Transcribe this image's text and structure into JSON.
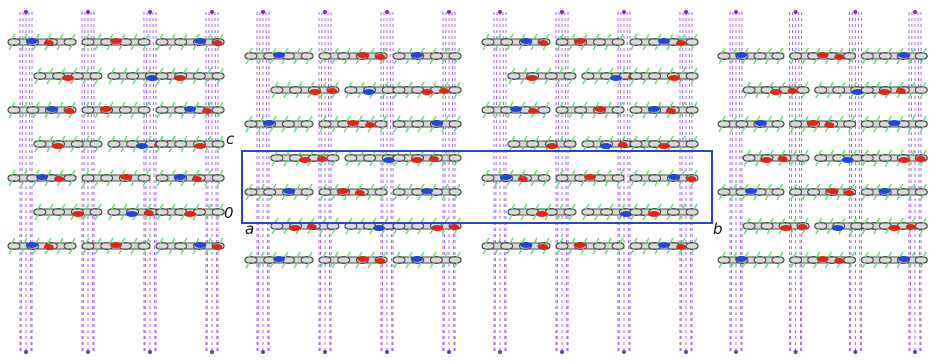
{
  "diagram": {
    "type": "crystal-packing",
    "projection_axes": [
      "a",
      "b",
      "c"
    ],
    "axis_labels": {
      "origin": "0",
      "a": "a",
      "b": "b",
      "c": "c"
    },
    "colors": {
      "background": "#ffffff",
      "unit_cell": "#2a46c8",
      "carbon_bond": "#4a4a4a",
      "hydrogen_light": "#d9d9d9",
      "fluorine": "#6fe07a",
      "oxygen": "#e0261b",
      "nitrogen": "#2545d8",
      "contact_dashed": "#7a2bd6"
    },
    "layout": {
      "blocks": 4,
      "rows_per_block": 7,
      "molecules_per_row": 3
    }
  }
}
